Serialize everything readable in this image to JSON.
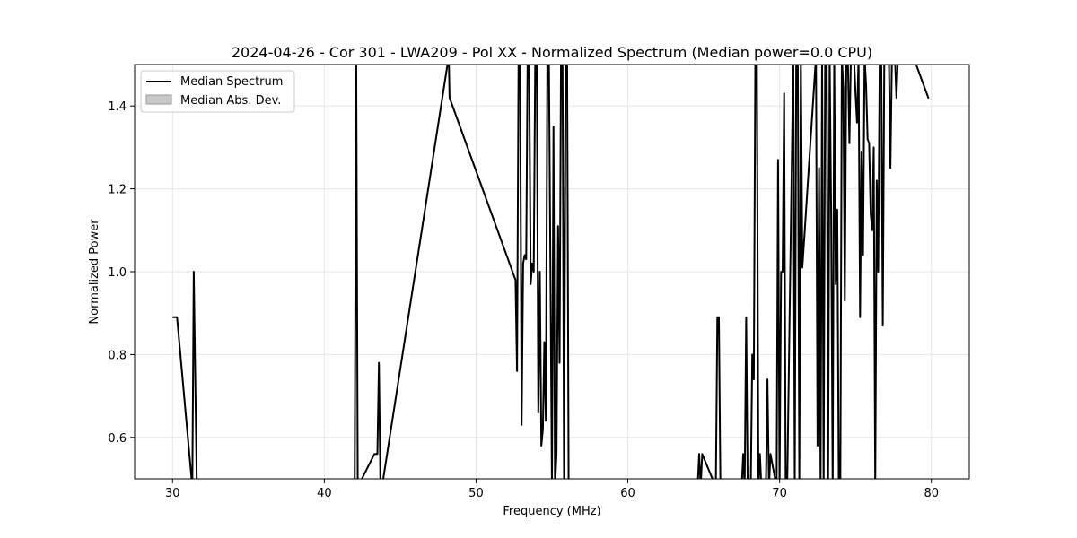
{
  "chart_data": {
    "type": "line",
    "title": "2024-04-26 - Cor 301 - LWA209 - Pol XX - Normalized Spectrum (Median power=0.0 CPU)",
    "xlabel": "Frequency (MHz)",
    "ylabel": "Normalized Power",
    "xlim": [
      27.5,
      82.5
    ],
    "ylim": [
      0.5,
      1.5
    ],
    "xticks": [
      30,
      40,
      50,
      60,
      70,
      80
    ],
    "yticks": [
      0.6,
      0.8,
      1.0,
      1.2,
      1.4
    ],
    "xtick_labels": [
      "30",
      "40",
      "50",
      "60",
      "70",
      "80"
    ],
    "ytick_labels": [
      "0.6",
      "0.8",
      "1.0",
      "1.2",
      "1.4"
    ],
    "grid": true,
    "legend_position": "top-left",
    "colors": {
      "line": "#000000",
      "band_fill": "#c8c8c8",
      "band_edge": "#999999",
      "grid": "#e6e6e6"
    },
    "series": [
      {
        "name": "Median Spectrum",
        "x": [
          30.0,
          30.2,
          30.3,
          31.3,
          31.4,
          31.6,
          42.0,
          42.1,
          42.2,
          43.3,
          43.4,
          43.5,
          43.6,
          43.7,
          43.8,
          48.2,
          48.25,
          52.6,
          52.7,
          52.8,
          52.9,
          53.0,
          53.1,
          53.2,
          53.3,
          53.4,
          53.5,
          53.6,
          53.7,
          53.8,
          53.9,
          54.0,
          54.1,
          54.2,
          54.3,
          54.4,
          54.5,
          54.6,
          54.7,
          54.8,
          55.0,
          55.1,
          55.2,
          55.3,
          55.4,
          55.5,
          55.6,
          55.7,
          55.8,
          55.9,
          56.0,
          56.1,
          56.2,
          56.3,
          64.6,
          64.7,
          64.8,
          64.9,
          65.8,
          65.9,
          66.0,
          66.1,
          67.5,
          67.6,
          67.7,
          67.8,
          67.9,
          68.1,
          68.2,
          68.3,
          68.4,
          68.5,
          68.6,
          68.7,
          68.8,
          69.1,
          69.2,
          69.3,
          69.4,
          69.8,
          69.9,
          70.0,
          70.1,
          70.2,
          70.3,
          70.4,
          70.5,
          70.9,
          71.0,
          71.1,
          71.2,
          71.3,
          71.4,
          71.5,
          72.4,
          72.5,
          72.6,
          72.7,
          72.8,
          72.9,
          73.0,
          73.1,
          73.2,
          73.3,
          73.4,
          73.5,
          73.6,
          73.7,
          73.8,
          73.9,
          74.0,
          74.1,
          74.2,
          74.3,
          74.4,
          74.5,
          74.6,
          74.7,
          74.8,
          74.9,
          75.0,
          75.1,
          75.2,
          75.3,
          75.4,
          75.5,
          75.6,
          75.7,
          75.8,
          75.9,
          76.0,
          76.1,
          76.2,
          76.3,
          76.4,
          76.5,
          76.6,
          76.7,
          76.8,
          76.9,
          77.0,
          77.1,
          77.2,
          77.3,
          77.4,
          77.5,
          77.6,
          77.7,
          77.8,
          77.9,
          78.0,
          78.6,
          78.7,
          78.8,
          79.8,
          79.85
        ],
        "y": [
          0.89,
          0.89,
          0.89,
          0.48,
          1.0,
          0.48,
          0.48,
          1.52,
          0.48,
          0.56,
          0.56,
          0.56,
          0.78,
          0.48,
          0.48,
          1.52,
          1.42,
          0.98,
          0.76,
          1.52,
          1.52,
          0.63,
          1.02,
          1.04,
          1.03,
          1.52,
          1.52,
          0.97,
          1.02,
          1.0,
          1.52,
          1.52,
          0.66,
          1.0,
          0.58,
          0.62,
          0.83,
          0.64,
          1.52,
          1.52,
          0.48,
          1.35,
          0.48,
          0.56,
          1.11,
          0.78,
          1.52,
          1.52,
          0.48,
          1.52,
          1.52,
          0.48,
          0.48,
          0.48,
          0.48,
          0.56,
          0.48,
          0.56,
          0.48,
          0.89,
          0.89,
          0.48,
          0.48,
          0.56,
          0.48,
          0.89,
          0.48,
          0.48,
          0.8,
          0.74,
          1.52,
          1.52,
          0.48,
          0.56,
          0.48,
          0.48,
          0.74,
          0.48,
          0.56,
          0.48,
          1.27,
          0.48,
          1.0,
          1.0,
          1.43,
          0.48,
          0.48,
          1.52,
          0.48,
          1.52,
          1.52,
          0.48,
          1.52,
          1.01,
          1.52,
          0.58,
          1.25,
          0.48,
          1.52,
          0.48,
          1.52,
          1.52,
          0.48,
          1.52,
          1.14,
          0.48,
          1.52,
          0.97,
          1.15,
          0.48,
          0.48,
          1.52,
          1.44,
          0.93,
          1.52,
          1.52,
          1.31,
          1.52,
          1.52,
          1.52,
          1.43,
          1.36,
          1.52,
          0.89,
          1.29,
          1.04,
          1.52,
          1.45,
          1.32,
          1.31,
          1.14,
          1.1,
          1.3,
          0.48,
          1.22,
          1.0,
          1.52,
          1.52,
          0.87,
          1.52,
          1.52,
          1.52,
          1.52,
          1.25,
          1.52,
          1.52,
          1.52,
          1.42,
          1.52,
          1.52,
          1.52,
          1.52,
          1.52,
          1.52,
          1.42,
          1.42
        ],
        "color": "#000000"
      },
      {
        "name": "Median Abs. Dev.",
        "kind": "band",
        "values": []
      }
    ]
  }
}
